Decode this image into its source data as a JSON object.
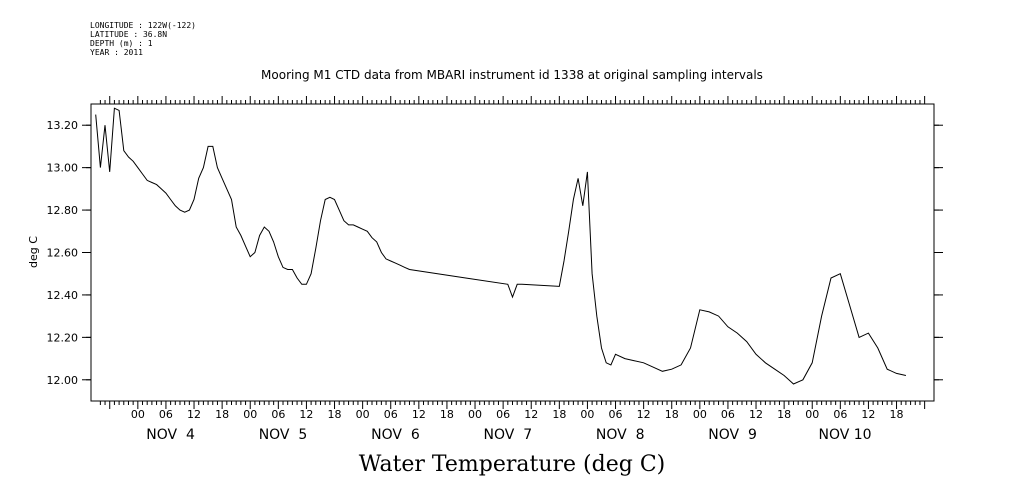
{
  "metadata": {
    "longitude": "LONGITUDE : 122W(-122)",
    "latitude": "LATITUDE : 36.8N",
    "depth": "DEPTH (m) : 1",
    "year": "YEAR : 2011"
  },
  "chart_data": {
    "type": "line",
    "title": "Mooring M1 CTD data from MBARI instrument id 1338 at original sampling intervals",
    "bottom_title": "Water Temperature (deg C)",
    "ylabel": "deg C",
    "xlabel": "",
    "x_unit": "hours since Nov 4 00:00",
    "xlim": [
      -10,
      170
    ],
    "ylim": [
      11.9,
      13.3
    ],
    "y_ticks": [
      "12.00",
      "12.20",
      "12.40",
      "12.60",
      "12.80",
      "13.00",
      "13.20"
    ],
    "x_tick_labels": [
      "00",
      "06",
      "12",
      "18"
    ],
    "day_labels": [
      "NOV  4",
      "NOV  5",
      "NOV  6",
      "NOV  7",
      "NOV  8",
      "NOV  9",
      "NOV 10"
    ],
    "grid": false,
    "series": [
      {
        "x": [
          -9,
          -8,
          -7,
          -6,
          -5,
          -4,
          -3,
          -2,
          -1,
          0,
          1,
          2,
          3,
          4,
          5,
          6,
          7,
          8,
          9,
          10,
          11,
          12,
          13,
          14,
          15,
          16,
          17,
          18,
          19,
          20,
          21,
          22,
          23,
          24,
          25,
          26,
          27,
          28,
          29,
          30,
          31,
          32,
          33,
          34,
          35,
          36,
          37,
          38,
          39,
          40,
          41,
          42,
          43,
          44,
          45,
          46,
          47,
          48,
          49,
          50,
          51,
          52,
          53,
          54,
          55,
          56,
          57,
          58,
          70,
          79,
          80,
          81,
          82,
          90,
          91,
          92,
          93,
          94,
          95,
          96,
          97,
          98,
          99,
          100,
          101,
          102,
          104,
          106,
          108,
          110,
          112,
          114,
          116,
          118,
          120,
          122,
          124,
          126,
          128,
          130,
          132,
          134,
          136,
          138,
          140,
          142,
          144,
          146,
          148,
          150,
          152,
          154,
          156,
          158,
          160,
          162,
          164
        ],
        "y": [
          13.25,
          13.0,
          13.2,
          12.98,
          13.28,
          13.27,
          13.08,
          13.05,
          13.03,
          13.0,
          12.97,
          12.94,
          12.93,
          12.92,
          12.9,
          12.88,
          12.85,
          12.82,
          12.8,
          12.79,
          12.8,
          12.85,
          12.95,
          13.0,
          13.1,
          13.1,
          13.0,
          12.95,
          12.9,
          12.85,
          12.72,
          12.68,
          12.63,
          12.58,
          12.6,
          12.68,
          12.72,
          12.7,
          12.65,
          12.58,
          12.53,
          12.52,
          12.52,
          12.48,
          12.45,
          12.45,
          12.5,
          12.62,
          12.75,
          12.85,
          12.86,
          12.85,
          12.8,
          12.75,
          12.73,
          12.73,
          12.72,
          12.71,
          12.7,
          12.67,
          12.65,
          12.6,
          12.57,
          12.56,
          12.55,
          12.54,
          12.53,
          12.52,
          12.48,
          12.45,
          12.39,
          12.45,
          12.45,
          12.44,
          12.56,
          12.7,
          12.85,
          12.95,
          12.82,
          12.98,
          12.5,
          12.3,
          12.15,
          12.08,
          12.07,
          12.12,
          12.1,
          12.09,
          12.08,
          12.06,
          12.04,
          12.05,
          12.07,
          12.15,
          12.33,
          12.32,
          12.3,
          12.25,
          12.22,
          12.18,
          12.12,
          12.08,
          12.05,
          12.02,
          11.98,
          12.0,
          12.08,
          12.3,
          12.48,
          12.5,
          12.35,
          12.2,
          12.22,
          12.15,
          12.05,
          12.03,
          12.02
        ]
      }
    ]
  }
}
